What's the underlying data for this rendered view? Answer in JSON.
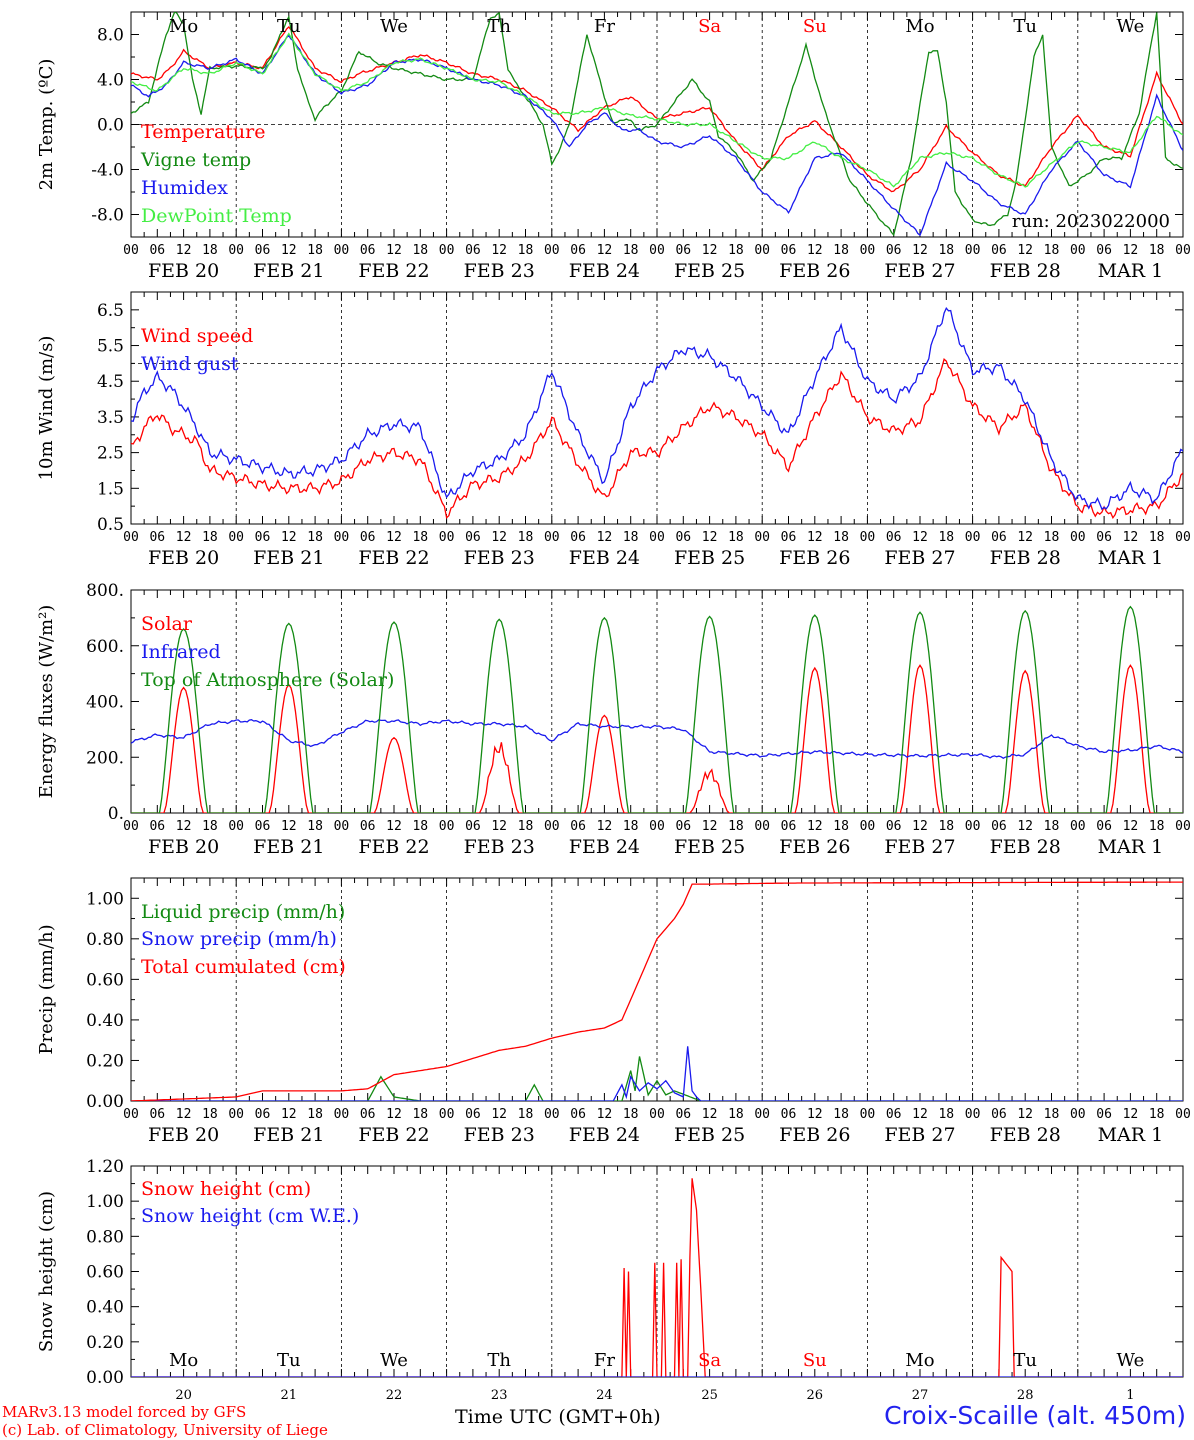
{
  "colors": {
    "red": "#ff0000",
    "green": "#138a13",
    "blue": "#1a1aee",
    "lightgreen": "#44ee44",
    "grid": "#000000"
  },
  "x_axis": {
    "hour_labels": [
      "00",
      "06",
      "12",
      "18"
    ],
    "final_label": "00",
    "date_labels": [
      "FEB 20",
      "FEB 21",
      "FEB 22",
      "FEB 23",
      "FEB 24",
      "FEB 25",
      "FEB 26",
      "FEB 27",
      "FEB 28",
      "MAR  1"
    ],
    "weekday_labels": [
      "Mo",
      "Tu",
      "We",
      "Th",
      "Fr",
      "Sa",
      "Su",
      "Mo",
      "Tu",
      "We"
    ],
    "weekday_colors": [
      "black",
      "black",
      "black",
      "black",
      "black",
      "red",
      "red",
      "black",
      "black",
      "black"
    ],
    "day_numbers": [
      "20",
      "21",
      "22",
      "23",
      "24",
      "25",
      "26",
      "27",
      "28",
      "1"
    ]
  },
  "footer": {
    "model_line": "MARv3.13 model forced by GFS",
    "lab_line": "(c) Lab. of Climatology, University of Liege",
    "xlabel": "Time UTC (GMT+0h)",
    "station": "Croix-Scaille (alt. 450m)"
  },
  "chart_data": [
    {
      "type": "line",
      "ylabel": "2m Temp. (ºC)",
      "ylim": [
        -10,
        10
      ],
      "yticks": [
        8,
        4,
        0,
        -4,
        -8
      ],
      "ytick_labels": [
        "8.0",
        "4.0",
        "0.0",
        "-4.0",
        "-8.0"
      ],
      "dashed_y": 0,
      "run_label": "run: 2023022000",
      "x_unit": "hours since FEB 20 00 UTC",
      "series": [
        {
          "name": "Temperature",
          "color": "red",
          "x": [
            0,
            6,
            9,
            12,
            18,
            24,
            30,
            36,
            42,
            48,
            52,
            60,
            66,
            72,
            78,
            84,
            90,
            96,
            102,
            108,
            114,
            120,
            126,
            132,
            138,
            144,
            150,
            156,
            162,
            168,
            174,
            180,
            186,
            192,
            198,
            204,
            210,
            216,
            222,
            228,
            234,
            240
          ],
          "y": [
            4.5,
            4.0,
            5.0,
            6.5,
            5.0,
            5.5,
            5.0,
            8.8,
            5.0,
            3.8,
            4.5,
            5.5,
            6.2,
            5.5,
            4.5,
            4.0,
            3.0,
            1.5,
            -0.5,
            1.5,
            2.5,
            0.5,
            1.0,
            1.5,
            -1.5,
            -4.0,
            -1.0,
            0.3,
            -2.0,
            -4.5,
            -6.0,
            -4.0,
            -0.2,
            -2.5,
            -4.5,
            -5.5,
            -2.0,
            0.8,
            -2.0,
            -2.8,
            4.5,
            0.0
          ]
        },
        {
          "name": "Vigne temp",
          "color": "green",
          "x": [
            0,
            4,
            8,
            10,
            12,
            14,
            16,
            18,
            24,
            30,
            32,
            34,
            36,
            38,
            40,
            42,
            44,
            48,
            52,
            56,
            60,
            66,
            72,
            78,
            82,
            84,
            86,
            88,
            90,
            94,
            96,
            98,
            100,
            104,
            108,
            110,
            112,
            114,
            116,
            120,
            126,
            128,
            132,
            134,
            138,
            142,
            146,
            150,
            154,
            158,
            164,
            168,
            170,
            174,
            178,
            182,
            184,
            186,
            188,
            192,
            196,
            200,
            202,
            206,
            208,
            210,
            214,
            218,
            222,
            226,
            230,
            234,
            236,
            240
          ],
          "y": [
            1.0,
            2.0,
            8.0,
            10.0,
            9.0,
            4.0,
            1.0,
            5.0,
            5.2,
            5.0,
            6.0,
            8.0,
            9.5,
            5.0,
            2.5,
            0.5,
            1.5,
            3.0,
            6.5,
            5.5,
            5.0,
            4.5,
            4.0,
            4.0,
            9.5,
            9.8,
            5.0,
            3.5,
            2.5,
            0.0,
            -3.5,
            -2.0,
            0.0,
            8.0,
            2.5,
            0.0,
            0.5,
            0.3,
            -0.5,
            0.0,
            3.0,
            4.0,
            2.0,
            -1.0,
            -2.5,
            -5.0,
            -3.0,
            2.0,
            7.0,
            1.5,
            -5.0,
            -7.0,
            -8.0,
            -9.8,
            -3.0,
            6.5,
            6.5,
            2.0,
            -6.0,
            -8.5,
            -9.0,
            -8.0,
            -5.0,
            6.0,
            8.0,
            -2.0,
            -5.5,
            -4.5,
            -3.0,
            -3.0,
            1.0,
            10.0,
            -3.0,
            -4.0
          ]
        },
        {
          "name": "Humidex",
          "color": "blue",
          "x": [
            0,
            4,
            8,
            12,
            18,
            24,
            30,
            36,
            42,
            48,
            54,
            60,
            66,
            72,
            78,
            84,
            90,
            96,
            100,
            104,
            108,
            112,
            116,
            120,
            126,
            132,
            138,
            144,
            150,
            156,
            162,
            168,
            174,
            180,
            186,
            192,
            198,
            204,
            210,
            216,
            222,
            228,
            234,
            240
          ],
          "y": [
            3.5,
            2.5,
            3.5,
            5.5,
            5.0,
            5.8,
            4.5,
            8.0,
            4.5,
            2.8,
            3.5,
            5.5,
            5.8,
            5.0,
            4.0,
            3.5,
            2.5,
            0.5,
            -2.0,
            0.0,
            1.0,
            -0.5,
            -0.5,
            -1.5,
            -2.0,
            -1.0,
            -3.0,
            -6.0,
            -7.8,
            -3.0,
            -2.5,
            -5.0,
            -7.5,
            -9.8,
            -3.5,
            -5.0,
            -7.0,
            -8.0,
            -4.0,
            -1.5,
            -4.5,
            -5.5,
            2.5,
            -2.3
          ]
        },
        {
          "name": "DewPoint Temp",
          "color": "lightgreen",
          "x": [
            0,
            6,
            12,
            18,
            24,
            30,
            36,
            42,
            48,
            54,
            60,
            66,
            72,
            78,
            84,
            90,
            96,
            102,
            108,
            114,
            120,
            126,
            132,
            138,
            144,
            150,
            156,
            162,
            168,
            174,
            180,
            186,
            192,
            198,
            204,
            210,
            216,
            222,
            228,
            234,
            240
          ],
          "y": [
            3.8,
            3.0,
            5.0,
            4.5,
            5.5,
            4.5,
            8.0,
            4.5,
            3.0,
            3.8,
            5.5,
            5.8,
            5.0,
            4.0,
            3.8,
            2.5,
            1.0,
            1.0,
            1.5,
            0.8,
            0.5,
            0.0,
            0.0,
            -1.5,
            -3.0,
            -3.0,
            -1.5,
            -3.0,
            -4.0,
            -5.5,
            -3.0,
            -2.5,
            -3.0,
            -4.5,
            -5.5,
            -3.5,
            -1.5,
            -2.0,
            -2.5,
            0.8,
            -1.0
          ]
        }
      ]
    },
    {
      "type": "line",
      "ylabel": "10m Wind (m/s)",
      "ylim": [
        0.5,
        7.0
      ],
      "yticks": [
        6.5,
        5.5,
        4.5,
        3.5,
        2.5,
        1.5,
        0.5
      ],
      "ytick_labels": [
        "6.5",
        "5.5",
        "4.5",
        "3.5",
        "2.5",
        "1.5",
        "0.5"
      ],
      "dashed_y": 5.0,
      "series": [
        {
          "name": "Wind speed",
          "color": "red",
          "x": [
            0,
            3,
            6,
            9,
            12,
            15,
            18,
            24,
            30,
            36,
            42,
            48,
            54,
            60,
            66,
            72,
            78,
            84,
            90,
            96,
            102,
            108,
            114,
            120,
            126,
            132,
            138,
            144,
            150,
            156,
            162,
            168,
            174,
            180,
            186,
            192,
            198,
            204,
            210,
            216,
            222,
            228,
            234,
            240
          ],
          "y": [
            2.6,
            3.2,
            3.6,
            3.2,
            3.0,
            2.8,
            2.0,
            1.8,
            1.6,
            1.5,
            1.5,
            1.7,
            2.3,
            2.5,
            2.3,
            0.8,
            1.6,
            1.8,
            2.3,
            3.4,
            2.2,
            1.2,
            2.5,
            2.5,
            3.2,
            3.8,
            3.5,
            3.0,
            2.1,
            3.5,
            4.7,
            3.5,
            3.1,
            3.4,
            5.1,
            3.8,
            3.2,
            3.8,
            2.0,
            1.0,
            0.8,
            0.9,
            1.0,
            1.9
          ]
        },
        {
          "name": "Wind gust",
          "color": "blue",
          "x": [
            0,
            3,
            6,
            9,
            12,
            15,
            18,
            24,
            30,
            36,
            42,
            48,
            54,
            60,
            66,
            72,
            78,
            84,
            90,
            96,
            102,
            108,
            114,
            120,
            126,
            132,
            138,
            144,
            150,
            156,
            162,
            168,
            174,
            180,
            186,
            192,
            198,
            204,
            210,
            216,
            222,
            228,
            234,
            240
          ],
          "y": [
            3.4,
            4.2,
            4.6,
            4.3,
            3.8,
            3.2,
            2.5,
            2.3,
            2.1,
            1.9,
            2.0,
            2.3,
            3.0,
            3.3,
            3.2,
            1.2,
            2.0,
            2.3,
            3.0,
            4.8,
            3.0,
            1.7,
            3.8,
            4.8,
            5.4,
            5.2,
            4.6,
            3.8,
            3.0,
            4.6,
            6.0,
            4.5,
            4.0,
            4.6,
            6.6,
            4.8,
            4.9,
            4.0,
            2.3,
            1.2,
            1.0,
            1.5,
            1.2,
            2.6
          ]
        }
      ]
    },
    {
      "type": "line",
      "ylabel": "Energy fluxes (W/m²)",
      "ylim": [
        0,
        800
      ],
      "yticks": [
        800,
        600,
        400,
        200,
        0
      ],
      "ytick_labels": [
        "800.",
        "600.",
        "400.",
        "200.",
        "0."
      ],
      "series": [
        {
          "name": "Solar",
          "color": "red",
          "peaks": [
            450,
            460,
            270,
            260,
            350,
            160,
            520,
            530,
            510,
            530
          ]
        },
        {
          "name": "Infrared",
          "color": "blue",
          "x": [
            0,
            6,
            12,
            18,
            24,
            30,
            36,
            42,
            48,
            54,
            60,
            66,
            72,
            78,
            84,
            90,
            96,
            102,
            108,
            114,
            120,
            126,
            132,
            144,
            156,
            168,
            180,
            192,
            198,
            204,
            210,
            216,
            222,
            228,
            234,
            240
          ],
          "y": [
            255,
            280,
            270,
            320,
            330,
            330,
            260,
            240,
            290,
            330,
            330,
            320,
            330,
            320,
            320,
            310,
            260,
            320,
            310,
            310,
            310,
            300,
            220,
            205,
            220,
            210,
            205,
            210,
            200,
            210,
            280,
            240,
            220,
            225,
            240,
            220
          ]
        },
        {
          "name": "Top of Atmosphere (Solar)",
          "color": "green",
          "peaks": [
            660,
            680,
            685,
            695,
            700,
            705,
            710,
            720,
            725,
            740
          ]
        }
      ]
    },
    {
      "type": "line",
      "ylabel": "Precip (mm/h)",
      "ylim": [
        0,
        1.1
      ],
      "yticks": [
        1.0,
        0.8,
        0.6,
        0.4,
        0.2,
        0.0
      ],
      "ytick_labels": [
        "1.00",
        "0.80",
        "0.60",
        "0.40",
        "0.20",
        "0.00"
      ],
      "series": [
        {
          "name": "Liquid precip (mm/h)",
          "color": "green",
          "x": [
            0,
            54,
            57,
            60,
            66,
            90,
            92,
            94,
            96,
            112,
            114,
            115,
            116,
            118,
            120,
            122,
            124,
            130,
            240
          ],
          "y": [
            0,
            0,
            0.12,
            0.02,
            0,
            0,
            0.08,
            0,
            0,
            0,
            0.15,
            0.05,
            0.22,
            0.03,
            0.1,
            0.03,
            0.05,
            0,
            0
          ]
        },
        {
          "name": "Snow precip (mm/h)",
          "color": "blue",
          "x": [
            0,
            110,
            112,
            113,
            114,
            116,
            118,
            120,
            122,
            124,
            126,
            127,
            128,
            129,
            130,
            132,
            240
          ],
          "y": [
            0,
            0,
            0.08,
            0.02,
            0.12,
            0.05,
            0.09,
            0.06,
            0.1,
            0.04,
            0.02,
            0.27,
            0.05,
            0.02,
            0,
            0,
            0
          ]
        },
        {
          "name": "Total cumulated (cm)",
          "color": "red",
          "x": [
            0,
            12,
            24,
            30,
            36,
            48,
            54,
            60,
            66,
            72,
            78,
            84,
            90,
            96,
            102,
            108,
            112,
            116,
            120,
            124,
            126,
            128,
            132,
            150,
            240
          ],
          "y": [
            0,
            0.01,
            0.02,
            0.05,
            0.05,
            0.05,
            0.06,
            0.13,
            0.15,
            0.17,
            0.21,
            0.25,
            0.27,
            0.31,
            0.34,
            0.36,
            0.4,
            0.6,
            0.8,
            0.9,
            0.97,
            1.07,
            1.07,
            1.075,
            1.08
          ]
        }
      ]
    },
    {
      "type": "line",
      "ylabel": "Snow height (cm)",
      "ylim": [
        0,
        1.2
      ],
      "yticks": [
        1.2,
        1.0,
        0.8,
        0.6,
        0.4,
        0.2,
        0.0
      ],
      "ytick_labels": [
        "1.20",
        "1.00",
        "0.80",
        "0.60",
        "0.40",
        "0.20",
        "0.00"
      ],
      "series": [
        {
          "name": "Snow height (cm)",
          "color": "red",
          "x": [
            0,
            112,
            112.5,
            113,
            113.5,
            114,
            114.5,
            119,
            119.5,
            120,
            121,
            121.5,
            122,
            124,
            124.5,
            125,
            125.5,
            126,
            127,
            127.5,
            128,
            129,
            130,
            131,
            131.5,
            198,
            198.5,
            201,
            201.5,
            240
          ],
          "y": [
            0,
            0,
            0.62,
            0,
            0.6,
            0,
            0,
            0,
            0.65,
            0,
            0,
            0.65,
            0,
            0,
            0.65,
            0,
            0.67,
            0,
            0,
            0.68,
            1.13,
            0.95,
            0.5,
            0,
            0,
            0,
            0.68,
            0.6,
            0,
            0
          ]
        },
        {
          "name": "Snow height (cm W.E.)",
          "color": "blue",
          "x": [
            0,
            240
          ],
          "y": [
            0,
            0
          ]
        }
      ]
    }
  ]
}
